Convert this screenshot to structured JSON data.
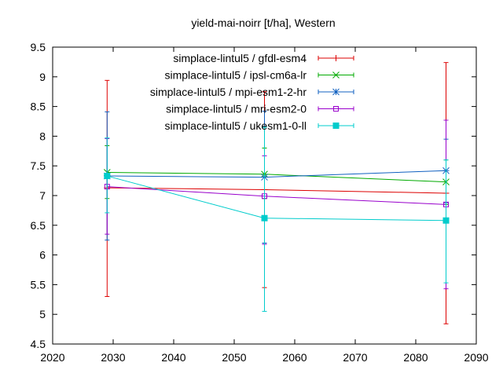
{
  "chart_data": {
    "type": "line",
    "title": "yield-mai-noirr [t/ha], Western",
    "xlabel": "",
    "ylabel": "",
    "xlim": [
      2020,
      2090
    ],
    "ylim": [
      4.5,
      9.5
    ],
    "xticks": [
      2020,
      2030,
      2040,
      2050,
      2060,
      2070,
      2080,
      2090
    ],
    "yticks": [
      4.5,
      5,
      5.5,
      6,
      6.5,
      7,
      7.5,
      8,
      8.5,
      9,
      9.5
    ],
    "grid": false,
    "legend_position": "top-right",
    "x": [
      2029,
      2055,
      2085
    ],
    "series": [
      {
        "name": "simplace-lintul5 / gfdl-esm4",
        "color": "#dd0000",
        "marker": "plus",
        "values": [
          7.13,
          7.1,
          7.04
        ],
        "err_low": [
          5.3,
          5.45,
          4.84
        ],
        "err_high": [
          8.94,
          8.75,
          9.24
        ]
      },
      {
        "name": "simplace-lintul5 / ipsl-cm6a-lr",
        "color": "#00aa00",
        "marker": "cross",
        "values": [
          7.39,
          7.36,
          7.23
        ],
        "err_low": [
          6.95,
          6.95,
          6.85
        ],
        "err_high": [
          7.84,
          7.8,
          7.6
        ]
      },
      {
        "name": "simplace-lintul5 / mpi-esm1-2-hr",
        "color": "#1060c0",
        "marker": "star",
        "values": [
          7.33,
          7.31,
          7.42
        ],
        "err_low": [
          6.25,
          6.2,
          6.88
        ],
        "err_high": [
          8.41,
          8.42,
          7.95
        ]
      },
      {
        "name": "simplace-lintul5 / mri-esm2-0",
        "color": "#9900cc",
        "marker": "square-open",
        "values": [
          7.15,
          6.99,
          6.85
        ],
        "err_low": [
          6.35,
          6.18,
          5.43
        ],
        "err_high": [
          7.96,
          7.67,
          8.27
        ]
      },
      {
        "name": "simplace-lintul5 / ukesm1-0-ll",
        "color": "#00cccc",
        "marker": "square-filled",
        "values": [
          7.33,
          6.62,
          6.58
        ],
        "err_low": [
          6.71,
          5.05,
          5.53
        ],
        "err_high": [
          7.97,
          8.15,
          7.6
        ]
      }
    ]
  }
}
